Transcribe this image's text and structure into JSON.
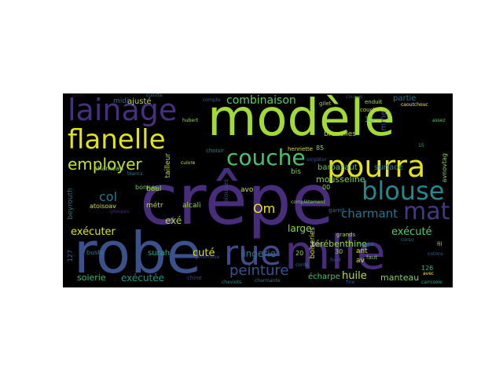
{
  "wordcloud": {
    "background": "#000000",
    "words": [
      {
        "text": "crêpe",
        "color": "#472d7b"
      },
      {
        "text": "robe",
        "color": "#3b518b"
      },
      {
        "text": "mlle",
        "color": "#472c7a"
      },
      {
        "text": "modèle",
        "color": "#a2da37"
      },
      {
        "text": "rue",
        "color": "#3e4a89"
      },
      {
        "text": "lainage",
        "color": "#46307e"
      },
      {
        "text": "flanelle",
        "color": "#dfe318"
      },
      {
        "text": "pourra",
        "color": "#e2e418"
      },
      {
        "text": "blouse",
        "color": "#23898e"
      },
      {
        "text": "couche",
        "color": "#4ac16d"
      },
      {
        "text": "mat",
        "color": "#443983"
      },
      {
        "text": "employer",
        "color": "#c5e021"
      },
      {
        "text": "combinaison",
        "color": "#62cb5f"
      },
      {
        "text": "peinture",
        "color": "#3b528b"
      },
      {
        "text": "charmant",
        "color": "#2c728e"
      },
      {
        "text": "exécuter",
        "color": "#dde318"
      },
      {
        "text": "exécuté",
        "color": "#58c765"
      },
      {
        "text": "exécutée",
        "color": "#21918c"
      },
      {
        "text": "col",
        "color": "#2a788e"
      },
      {
        "text": "Om",
        "color": "#f1e51d"
      },
      {
        "text": "large",
        "color": "#90d743"
      },
      {
        "text": "cuté",
        "color": "#d8e219"
      },
      {
        "text": "exé",
        "color": "#a5db36"
      },
      {
        "text": "huile",
        "color": "#c0df25"
      },
      {
        "text": "lingerie",
        "color": "#2b748e"
      },
      {
        "text": "soierie",
        "color": "#3bbb75"
      },
      {
        "text": "écharpe",
        "color": "#4ec36b"
      },
      {
        "text": "manteau",
        "color": "#84d44b"
      },
      {
        "text": "térébenthine",
        "color": "#95d840"
      },
      {
        "text": "mousseline",
        "color": "#7ad151"
      },
      {
        "text": "partie",
        "color": "#2c738e"
      },
      {
        "text": "surface",
        "color": "#26828e"
      },
      {
        "text": "barbazaut",
        "color": "#5ec962"
      },
      {
        "text": "bruxelles",
        "color": "#b5de2b"
      },
      {
        "text": "ajusté",
        "color": "#b8de29"
      },
      {
        "text": "midi",
        "color": "#31688e"
      },
      {
        "text": "bonnes",
        "color": "#6ece58"
      },
      {
        "text": "chameau",
        "color": "#7ad151"
      },
      {
        "text": "boul",
        "color": "#a8db34"
      },
      {
        "text": "métr",
        "color": "#c2df23"
      },
      {
        "text": "alcali",
        "color": "#9dd93b"
      },
      {
        "text": "atoisoav",
        "color": "#cae11f"
      },
      {
        "text": "surah",
        "color": "#22a884"
      },
      {
        "text": "avo",
        "color": "#d2e21b"
      },
      {
        "text": "bis",
        "color": "#7fd34e"
      },
      {
        "text": "boiseries",
        "color": "#dde318"
      },
      {
        "text": "blouses",
        "color": "#3f4788"
      },
      {
        "text": "tailleur",
        "color": "#bddf26"
      },
      {
        "text": "beyrouth",
        "color": "#2e6f8e"
      },
      {
        "text": "buste",
        "color": "#287d8e"
      },
      {
        "text": "ant",
        "color": "#dae319"
      },
      {
        "text": "av",
        "color": "#d5e21a"
      },
      {
        "text": "126",
        "color": "#3aba76"
      },
      {
        "text": "127",
        "color": "#306a8e"
      },
      {
        "text": "fil",
        "color": "#b0dd2f"
      },
      {
        "text": "35",
        "color": "#5cc863"
      },
      {
        "text": "30",
        "color": "#8bd646"
      },
      {
        "text": "20",
        "color": "#a0da39"
      },
      {
        "text": "00",
        "color": "#90d743"
      },
      {
        "text": "85",
        "color": "#84d44b"
      },
      {
        "text": "mme",
        "color": "#3e4c8a"
      },
      {
        "text": "avnovtag",
        "color": "#8ed645"
      },
      {
        "text": "choisir",
        "color": "#25838e"
      },
      {
        "text": "henriette",
        "color": "#dce319"
      },
      {
        "text": "couches",
        "color": "#cde11d"
      },
      {
        "text": "enduit",
        "color": "#addc30"
      },
      {
        "text": "grands",
        "color": "#a8db34"
      },
      {
        "text": "gilet",
        "color": "#9bd93c"
      },
      {
        "text": "garnit",
        "color": "#2f6c8e"
      },
      {
        "text": "faut",
        "color": "#7ad151"
      },
      {
        "text": "chine",
        "color": "#3f4889"
      },
      {
        "text": "cheviots",
        "color": "#21918c"
      },
      {
        "text": "charmante",
        "color": "#2c738e"
      },
      {
        "text": "geneviève",
        "color": "#3e4989"
      },
      {
        "text": "groupes",
        "color": "#482475"
      },
      {
        "text": "culotte",
        "color": "#2d708e"
      },
      {
        "text": "compte",
        "color": "#355f8d"
      },
      {
        "text": "complètement",
        "color": "#7fd34e"
      },
      {
        "text": "corso",
        "color": "#2d708e"
      },
      {
        "text": "faudra",
        "color": "#2a788e"
      },
      {
        "text": "fond",
        "color": "#3b528b"
      },
      {
        "text": "empâter",
        "color": "#3a548c"
      },
      {
        "text": "avec",
        "color": "#fde725"
      },
      {
        "text": "camisole",
        "color": "#22a884"
      },
      {
        "text": "caoutchouc",
        "color": "#fde725"
      },
      {
        "text": "coupes",
        "color": "#3f4788"
      },
      {
        "text": "cotons",
        "color": "#355f8d"
      },
      {
        "text": "1910",
        "color": "#440154"
      },
      {
        "text": "15",
        "color": "#20a486"
      },
      {
        "text": "hubert",
        "color": "#9bd93c"
      },
      {
        "text": "cuivre",
        "color": "#cde11d"
      },
      {
        "text": "corde",
        "color": "#2d708e"
      },
      {
        "text": "blancs",
        "color": "#2a788e"
      },
      {
        "text": "fine",
        "color": "#3b528b"
      },
      {
        "text": "assez",
        "color": "#5ec962"
      }
    ]
  }
}
